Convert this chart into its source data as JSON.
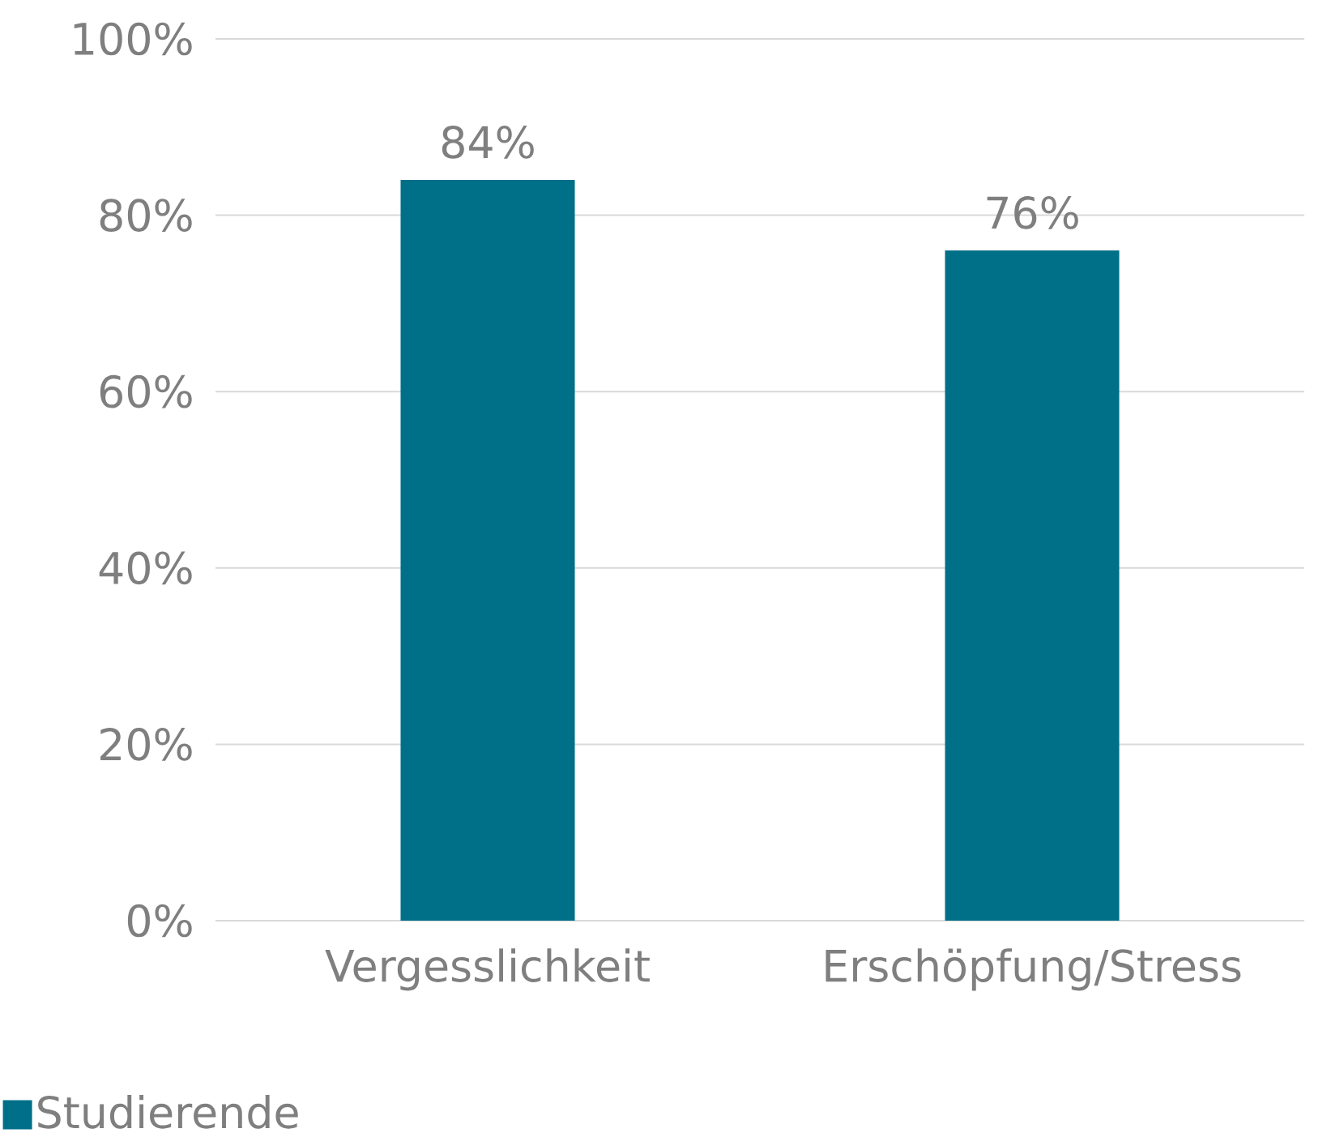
{
  "chart_data": {
    "type": "bar",
    "categories": [
      "Vergesslichkeit",
      "Erschöpfung/Stress"
    ],
    "series": [
      {
        "name": "Studierende",
        "color": "#007089",
        "values": [
          84,
          76
        ],
        "value_labels": [
          "84%",
          "76%"
        ]
      }
    ],
    "ylim": [
      0,
      100
    ],
    "yticks": [
      {
        "value": 0,
        "label": "0%"
      },
      {
        "value": 20,
        "label": "20%"
      },
      {
        "value": 40,
        "label": "40%"
      },
      {
        "value": 60,
        "label": "60%"
      },
      {
        "value": 80,
        "label": "80%"
      },
      {
        "value": 100,
        "label": "100%"
      }
    ],
    "grid": "y",
    "legend": "bottom left"
  }
}
